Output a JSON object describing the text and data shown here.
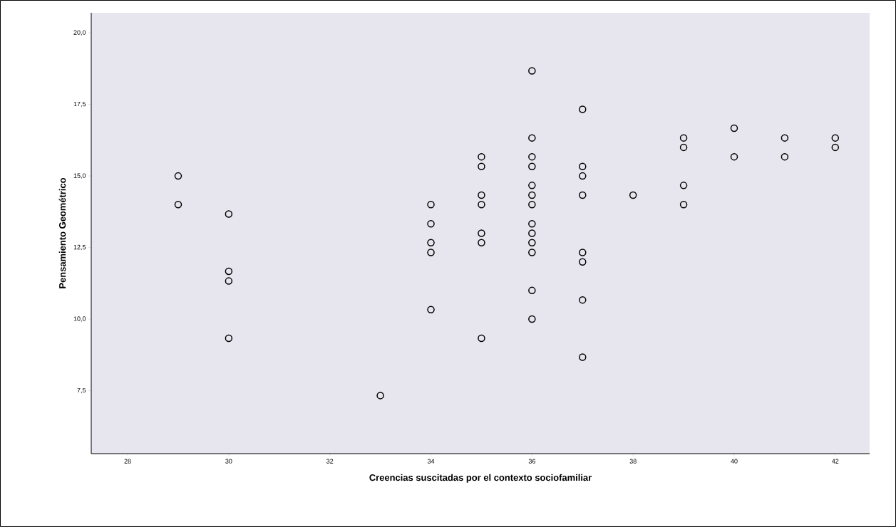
{
  "chart_data": {
    "type": "scatter",
    "xlabel": "Creencias suscitadas por el contexto sociofamiliar",
    "ylabel": "Pensamiento Geométrico",
    "x": [
      29,
      29,
      30,
      30,
      30,
      30,
      33,
      34,
      34,
      34,
      34,
      34,
      35,
      35,
      35,
      35,
      35,
      35,
      35,
      36,
      36,
      36,
      36,
      36,
      36,
      36,
      36,
      36,
      36,
      36,
      36,
      36,
      37,
      37,
      37,
      37,
      37,
      37,
      37,
      37,
      38,
      39,
      39,
      39,
      39,
      40,
      40,
      41,
      41,
      42,
      42
    ],
    "values": [
      15.0,
      14.0,
      13.67,
      11.67,
      11.33,
      9.33,
      7.33,
      14.0,
      13.33,
      12.67,
      12.33,
      10.33,
      15.67,
      15.33,
      14.33,
      14.0,
      13.0,
      12.67,
      9.33,
      18.67,
      16.33,
      15.67,
      15.33,
      14.67,
      14.33,
      14.0,
      13.33,
      13.0,
      12.67,
      12.33,
      11.0,
      10.0,
      17.33,
      15.33,
      15.0,
      14.33,
      12.33,
      12.0,
      10.67,
      8.67,
      14.33,
      16.33,
      16.0,
      14.67,
      14.0,
      16.67,
      15.67,
      16.33,
      15.67,
      16.33,
      16.0
    ],
    "color": "#000000",
    "marker": "circle",
    "xlim": [
      27.28,
      42.68
    ],
    "ylim": [
      5.3,
      20.7
    ],
    "xticks": [
      28,
      30,
      32,
      34,
      36,
      38,
      40,
      42
    ],
    "yticks": [
      {
        "value": 7.5,
        "label": "7,5"
      },
      {
        "value": 10.0,
        "label": "10,0"
      },
      {
        "value": 12.5,
        "label": "12,5"
      },
      {
        "value": 15.0,
        "label": "15,0"
      },
      {
        "value": 17.5,
        "label": "17,5"
      },
      {
        "value": 20.0,
        "label": "20,0"
      }
    ],
    "grid": false
  }
}
